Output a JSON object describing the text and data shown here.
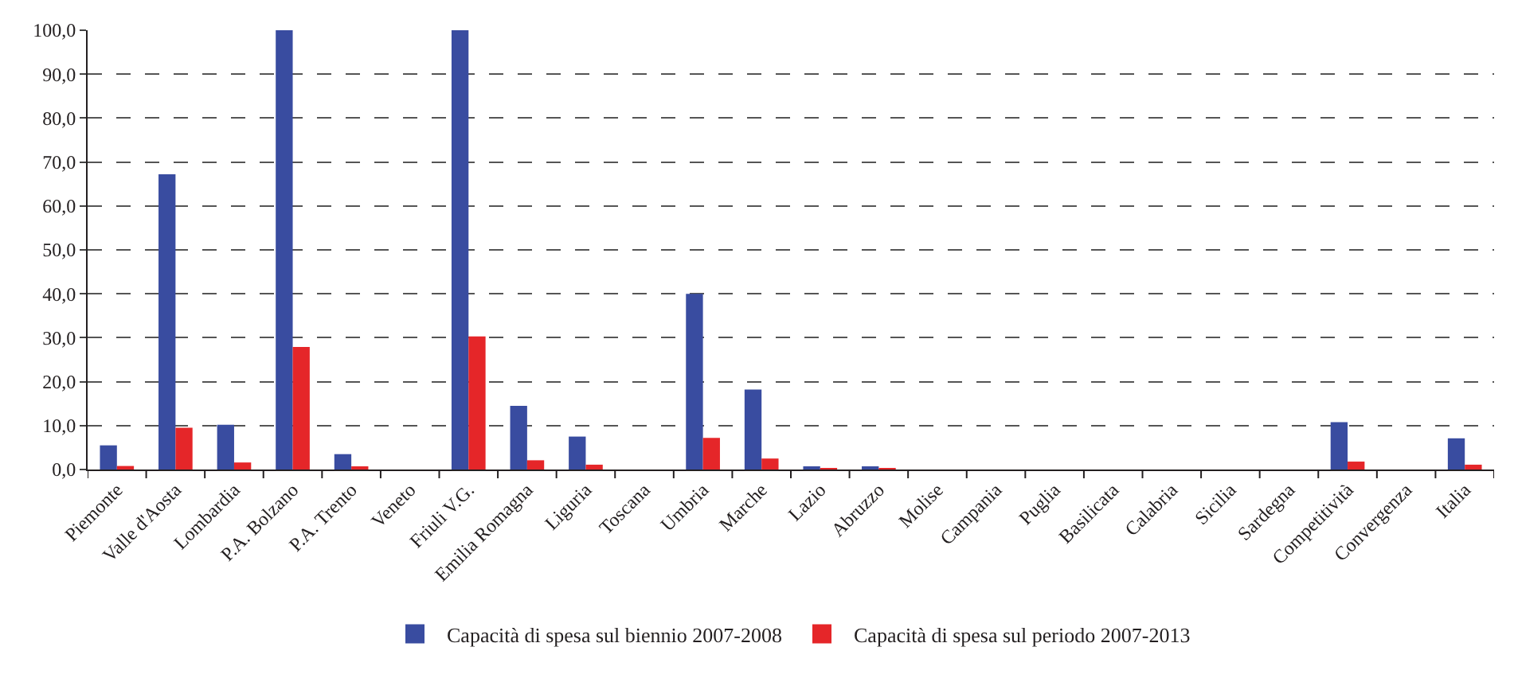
{
  "chart_data": {
    "type": "bar",
    "categories": [
      "Piemonte",
      "Valle d'Aosta",
      "Lombardia",
      "P.A. Bolzano",
      "P.A. Trento",
      "Veneto",
      "Friuli V.G.",
      "Emilia Romagna",
      "Liguria",
      "Toscana",
      "Umbria",
      "Marche",
      "Lazio",
      "Abruzzo",
      "Molise",
      "Campania",
      "Puglia",
      "Basilicata",
      "Calabria",
      "Sicilia",
      "Sardegna",
      "Competitività",
      "Convergenza",
      "Italia"
    ],
    "series": [
      {
        "name": "Capacità di spesa sul biennio 2007-2008",
        "color": "#394ca0",
        "values": [
          5.5,
          67.2,
          10.2,
          100,
          3.5,
          0,
          100,
          14.5,
          7.5,
          0,
          40.0,
          18.2,
          0.4,
          0.4,
          0,
          0,
          0,
          0,
          0,
          0,
          0,
          10.8,
          0,
          7.1
        ]
      },
      {
        "name": "Capacità di spesa sul periodo 2007-2013",
        "color": "#e52629",
        "values": [
          0.8,
          9.5,
          1.6,
          27.9,
          0.4,
          0,
          30.3,
          2.1,
          1.1,
          0,
          7.2,
          2.5,
          0.1,
          0.1,
          0,
          0,
          0,
          0,
          0,
          0,
          0,
          1.8,
          0,
          1.1
        ]
      }
    ],
    "ylim": [
      0,
      100
    ],
    "yticks": [
      {
        "value": 0,
        "label": "0,0"
      },
      {
        "value": 10,
        "label": "10,0"
      },
      {
        "value": 20,
        "label": "20,0"
      },
      {
        "value": 30,
        "label": "30,0"
      },
      {
        "value": 40,
        "label": "40,0"
      },
      {
        "value": 50,
        "label": "50,0"
      },
      {
        "value": 60,
        "label": "60,0"
      },
      {
        "value": 70,
        "label": "70,0"
      },
      {
        "value": 80,
        "label": "80,0"
      },
      {
        "value": 90,
        "label": "90,0"
      },
      {
        "value": 100,
        "label": "100,0"
      }
    ],
    "grid": "y",
    "legend": "bottom"
  }
}
